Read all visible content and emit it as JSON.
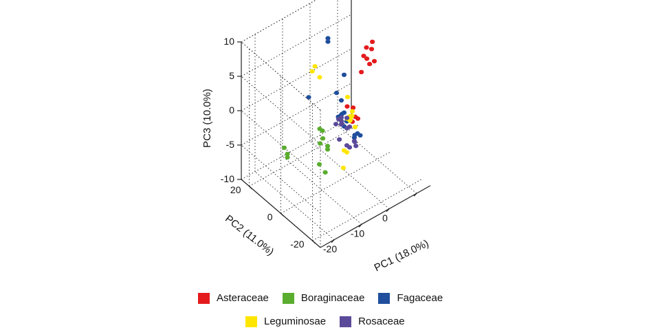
{
  "chart_data": {
    "type": "scatter",
    "projection": "3d",
    "title": "",
    "axes": {
      "x": {
        "label": "PC1 (18.0%)",
        "ticks": [
          "-20",
          "-10",
          "0"
        ],
        "range": [
          -25,
          15
        ]
      },
      "y": {
        "label": "PC2 (11.0%)",
        "ticks": [
          "-20",
          "0",
          "20"
        ],
        "range": [
          -25,
          25
        ]
      },
      "z": {
        "label": "PC3 (10.0%)",
        "ticks": [
          "-10",
          "-5",
          "0",
          "5",
          "10"
        ],
        "range": [
          -10,
          10
        ]
      }
    },
    "grid": true,
    "legend_position": "bottom",
    "series": [
      {
        "name": "Asteraceae",
        "color": "#e41a1c",
        "points": [
          [
            8,
            0,
            6.5
          ],
          [
            10,
            3,
            6.5
          ],
          [
            9,
            5,
            5.5
          ],
          [
            8,
            5,
            4.5
          ],
          [
            9,
            0,
            4.5
          ],
          [
            8,
            3,
            4.5
          ],
          [
            9,
            3,
            3.5
          ],
          [
            6,
            3,
            3
          ],
          [
            2,
            5,
            -1.5
          ],
          [
            3,
            3,
            -1.5
          ],
          [
            2,
            0,
            -2
          ],
          [
            1,
            0,
            -2.5
          ],
          [
            3,
            0,
            -2.5
          ]
        ]
      },
      {
        "name": "Boraginaceae",
        "color": "#5aad2f",
        "points": [
          [
            -8,
            5,
            -2.5
          ],
          [
            -7,
            5,
            -3
          ],
          [
            -8,
            3,
            -3.5
          ],
          [
            -9,
            3,
            -4
          ],
          [
            -8,
            0,
            -4
          ],
          [
            -8,
            0,
            -4.5
          ],
          [
            -11,
            0,
            -6
          ],
          [
            -10,
            -2,
            -7
          ],
          [
            -18,
            10,
            -4
          ],
          [
            -18,
            8,
            -4.5
          ],
          [
            -18,
            8,
            -5
          ]
        ]
      },
      {
        "name": "Fagaceae",
        "color": "#1f4e9c",
        "points": [
          [
            -5,
            5,
            10
          ],
          [
            -5,
            5,
            9.5
          ],
          [
            -2,
            0,
            5
          ],
          [
            -3,
            3,
            2
          ],
          [
            -3,
            0,
            1.5
          ],
          [
            -6,
            -5,
            1
          ],
          [
            -7,
            -5,
            1
          ],
          [
            -12,
            5,
            3
          ],
          [
            -2,
            0,
            -0.5
          ],
          [
            -3,
            0,
            -1
          ],
          [
            -1,
            3,
            -1.5
          ],
          [
            -1,
            0,
            -2
          ],
          [
            -2,
            0,
            -2.5
          ],
          [
            -1,
            -5,
            -3
          ],
          [
            0,
            -5,
            -3
          ],
          [
            1,
            -5,
            -3.5
          ],
          [
            0,
            -3,
            -4
          ]
        ]
      },
      {
        "name": "Leguminosae",
        "color": "#ffe600",
        "points": [
          [
            -8,
            8,
            6
          ],
          [
            -9,
            8,
            5.5
          ],
          [
            -8,
            5,
            5
          ],
          [
            -2,
            -5,
            0
          ],
          [
            1,
            3,
            0.5
          ],
          [
            1,
            0,
            -1
          ],
          [
            -2,
            -2,
            -1
          ],
          [
            -1,
            -2,
            -1.5
          ],
          [
            0,
            0,
            -1.5
          ],
          [
            2,
            3,
            -3
          ],
          [
            2,
            0,
            -3.5
          ],
          [
            -2,
            0,
            -6
          ],
          [
            -1,
            0,
            -6.5
          ],
          [
            -4,
            -3,
            -7.5
          ]
        ]
      },
      {
        "name": "Rosaceae",
        "color": "#5b4a9a",
        "points": [
          [
            -4,
            0,
            -1
          ],
          [
            -3,
            0,
            -1
          ],
          [
            -5,
            0,
            -1.5
          ],
          [
            -1,
            0,
            -1.5
          ],
          [
            -3,
            0,
            -1.5
          ],
          [
            -3,
            0,
            -2
          ],
          [
            -1,
            0,
            -3
          ],
          [
            -1,
            3,
            -3
          ],
          [
            0,
            0,
            -3
          ],
          [
            -1,
            -5,
            -4
          ],
          [
            0,
            -3,
            -4.5
          ],
          [
            0,
            -4,
            -5
          ],
          [
            -1,
            0,
            -5.5
          ],
          [
            0,
            0,
            -6
          ],
          [
            -2,
            3,
            -5
          ]
        ]
      }
    ]
  }
}
